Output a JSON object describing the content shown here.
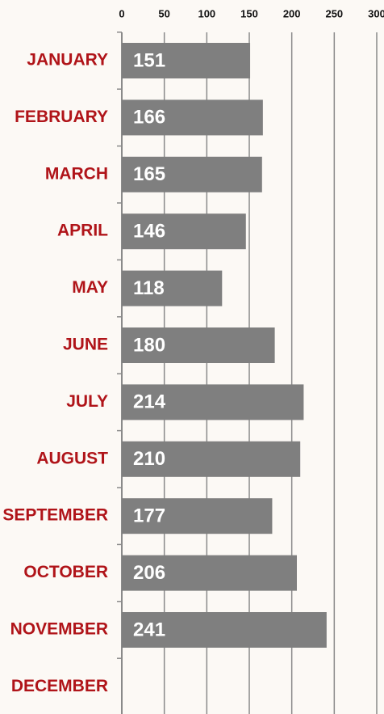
{
  "chart_data": {
    "type": "bar",
    "orientation": "horizontal",
    "categories": [
      "JANUARY",
      "FEBRUARY",
      "MARCH",
      "APRIL",
      "MAY",
      "JUNE",
      "JULY",
      "AUGUST",
      "SEPTEMBER",
      "OCTOBER",
      "NOVEMBER",
      "DECEMBER"
    ],
    "values": [
      151,
      166,
      165,
      146,
      118,
      180,
      214,
      210,
      177,
      206,
      241,
      null
    ],
    "color": "#7f7f7f",
    "xlim": [
      0,
      300
    ],
    "xticks": [
      0,
      50,
      100,
      150,
      200,
      250,
      300
    ],
    "grid": true
  }
}
